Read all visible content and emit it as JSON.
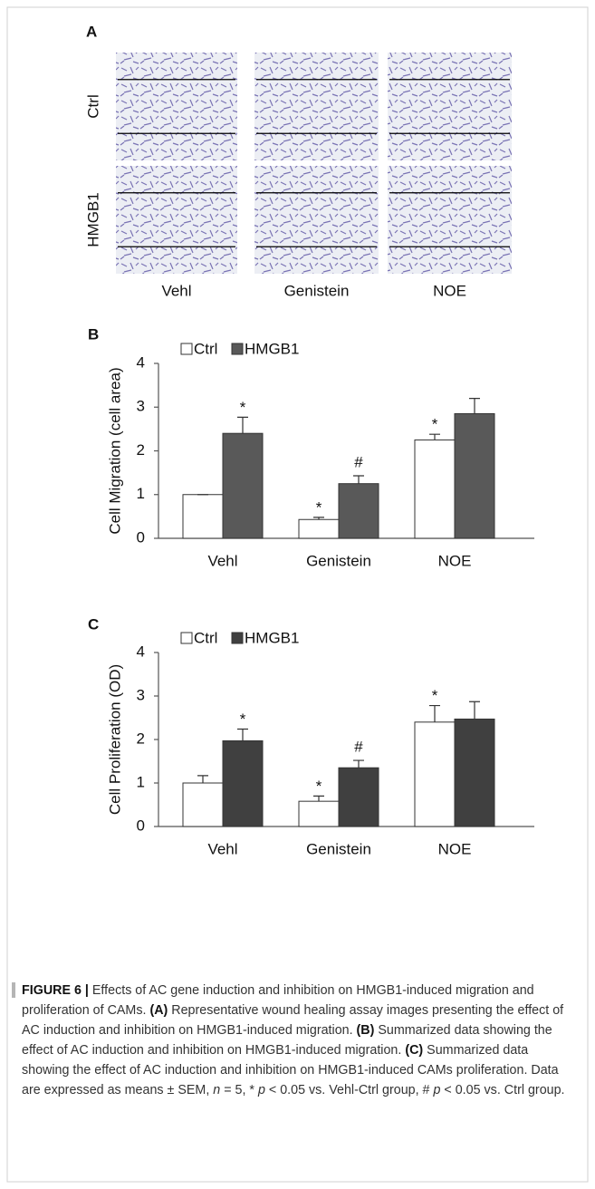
{
  "panel_a": {
    "panel_label": "A",
    "row_labels": [
      "Ctrl",
      "HMGB1"
    ],
    "col_labels": [
      "Vehl",
      "Genistein",
      "NOE"
    ]
  },
  "chart_data": [
    {
      "type": "bar",
      "panel_label": "B",
      "ylabel": "Cell Migration (cell area)",
      "categories": [
        "Vehl",
        "Genistein",
        "NOE"
      ],
      "series": [
        {
          "name": "Ctrl",
          "color": "#ffffff",
          "values": [
            1,
            0.43,
            2.25
          ],
          "errors": [
            0,
            0.05,
            0.13
          ],
          "annotations": [
            null,
            "*",
            "*"
          ]
        },
        {
          "name": "HMGB1",
          "color": "#595959",
          "values": [
            2.4,
            1.25,
            2.85
          ],
          "errors": [
            0.37,
            0.18,
            0.35
          ],
          "annotations": [
            "*",
            "#",
            null
          ]
        }
      ],
      "ylim": [
        0,
        4
      ],
      "yticks": [
        0,
        1,
        2,
        3,
        4
      ],
      "legend": "top-left",
      "grid": false
    },
    {
      "type": "bar",
      "panel_label": "C",
      "ylabel": "Cell Proliferation (OD)",
      "categories": [
        "Vehl",
        "Genistein",
        "NOE"
      ],
      "series": [
        {
          "name": "Ctrl",
          "color": "#ffffff",
          "values": [
            1,
            0.58,
            2.4
          ],
          "errors": [
            0.17,
            0.12,
            0.38
          ],
          "annotations": [
            null,
            "*",
            "*"
          ]
        },
        {
          "name": "HMGB1",
          "color": "#404040",
          "values": [
            1.97,
            1.35,
            2.47
          ],
          "errors": [
            0.27,
            0.17,
            0.4
          ],
          "annotations": [
            "*",
            "#",
            null
          ]
        }
      ],
      "ylim": [
        0,
        4
      ],
      "yticks": [
        0,
        1,
        2,
        3,
        4
      ],
      "legend": "top-left",
      "grid": false
    }
  ],
  "caption": {
    "label": "FIGURE 6 |",
    "runs": [
      " Effects of AC gene induction and inhibition on HMGB1-induced migration and proliferation of CAMs. ",
      "(A)",
      " Representative wound healing assay images presenting the effect of AC induction and inhibition on HMGB1-induced migration. ",
      "(B)",
      " Summarized data showing the effect of AC induction and inhibition on HMGB1-induced migration. ",
      "(C)",
      " Summarized data showing the effect of AC induction and inhibition on HMGB1-induced CAMs proliferation. Data are expressed as means ± SEM, ",
      "n",
      " = 5, * ",
      "p",
      " < 0.05 vs. Vehl-Ctrl group, # ",
      "p",
      " < 0.05 vs. Ctrl group."
    ]
  }
}
